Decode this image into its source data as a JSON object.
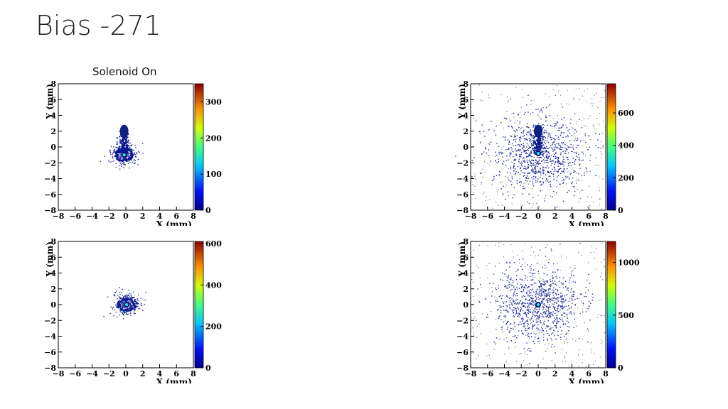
{
  "slide": {
    "title": "Bias -271",
    "subtitle": "Solenoid On"
  },
  "chart_data": [
    {
      "type": "heatmap",
      "xlabel": "X (mm)",
      "ylabel": "Y (mm)",
      "xlim": [
        -8,
        8
      ],
      "ylim": [
        -8,
        8
      ],
      "xticks": [
        "−8",
        "−6",
        "−4",
        "−2",
        "0",
        "2",
        "4",
        "6",
        "8"
      ],
      "yticks": [
        "−8",
        "−6",
        "−4",
        "−2",
        "0",
        "2",
        "4",
        "6",
        "8"
      ],
      "zlim": [
        0,
        350
      ],
      "zticks": [
        "0",
        "100",
        "200",
        "300"
      ],
      "zvalues": [
        0,
        100,
        200,
        300
      ],
      "hotspot": {
        "x": -0.2,
        "y": -1.0
      },
      "structure": "central spot with ring and vertical tail extending up to y≈2.5",
      "background_noise": "none"
    },
    {
      "type": "heatmap",
      "xlabel": "X (mm)",
      "ylabel": "Y (mm)",
      "xlim": [
        -8,
        8
      ],
      "ylim": [
        -8,
        8
      ],
      "xticks": [
        "−8",
        "−6",
        "−4",
        "−2",
        "0",
        "2",
        "4",
        "6",
        "8"
      ],
      "yticks": [
        "−8",
        "−6",
        "−4",
        "−2",
        "0",
        "2",
        "4",
        "6",
        "8"
      ],
      "zlim": [
        0,
        780
      ],
      "zticks": [
        "0",
        "200",
        "400",
        "600"
      ],
      "zvalues": [
        0,
        200,
        400,
        600
      ],
      "hotspot": {
        "x": 0.0,
        "y": -0.8
      },
      "structure": "diffuse halo with vertical streak up to y≈2.5",
      "background_noise": "sparse scattered points"
    },
    {
      "type": "heatmap",
      "xlabel": "X (mm)",
      "ylabel": "Y (mm)",
      "xlim": [
        -8,
        8
      ],
      "ylim": [
        -8,
        8
      ],
      "xticks": [
        "−8",
        "−6",
        "−4",
        "−2",
        "0",
        "2",
        "4",
        "6",
        "8"
      ],
      "yticks": [
        "−8",
        "−6",
        "−4",
        "−2",
        "0",
        "2",
        "4",
        "6",
        "8"
      ],
      "zlim": [
        0,
        610
      ],
      "zticks": [
        "0",
        "200",
        "400",
        "600"
      ],
      "zvalues": [
        0,
        200,
        400,
        600
      ],
      "hotspot": {
        "x": 0.1,
        "y": 0.0
      },
      "structure": "compact spot with small ring",
      "background_noise": "none"
    },
    {
      "type": "heatmap",
      "xlabel": "X (mm)",
      "ylabel": "Y (mm)",
      "xlim": [
        -8,
        8
      ],
      "ylim": [
        -8,
        8
      ],
      "xticks": [
        "−8",
        "−6",
        "−4",
        "−2",
        "0",
        "2",
        "4",
        "6",
        "8"
      ],
      "yticks": [
        "−8",
        "−6",
        "−4",
        "−2",
        "0",
        "2",
        "4",
        "6",
        "8"
      ],
      "zlim": [
        0,
        1200
      ],
      "zticks": [
        "0",
        "500",
        "1000"
      ],
      "zvalues": [
        0,
        500,
        1000
      ],
      "hotspot": {
        "x": 0.0,
        "y": 0.0
      },
      "structure": "diffuse round halo",
      "background_noise": "sparse scattered points"
    }
  ]
}
